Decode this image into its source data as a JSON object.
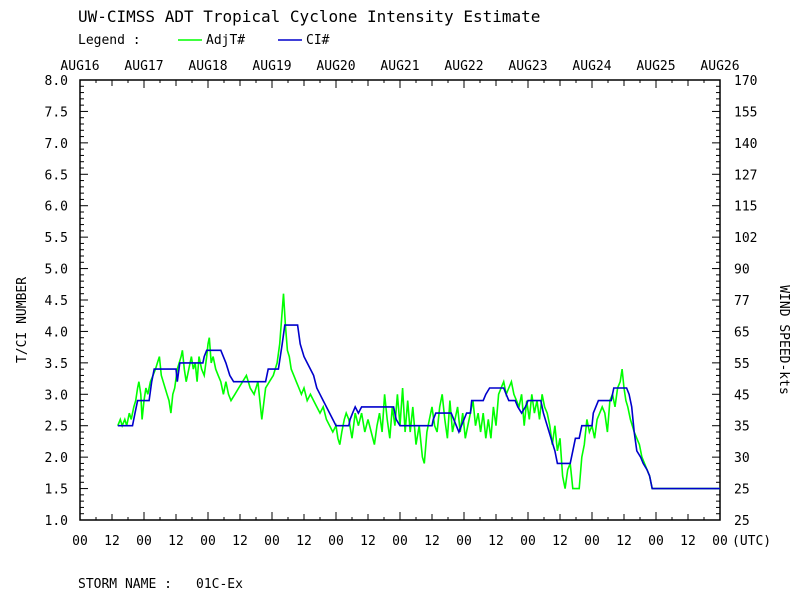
{
  "chart_data": {
    "type": "line",
    "title": "UW-CIMSS ADT Tropical Cyclone Intensity Estimate",
    "legend": {
      "heading": "Legend :",
      "placement": "top-left"
    },
    "ylabel": "T/CI NUMBER",
    "y2label": "WIND SPEED-kts",
    "xunit_label": "(UTC)",
    "footer_label": "STORM NAME :",
    "storm_name": "01C-Ex",
    "ylim": [
      1.0,
      8.0
    ],
    "y_ticks": [
      "1.0",
      "1.5",
      "2.0",
      "2.5",
      "3.0",
      "3.5",
      "4.0",
      "4.5",
      "5.0",
      "5.5",
      "6.0",
      "6.5",
      "7.0",
      "7.5",
      "8.0"
    ],
    "y2_ticks": [
      "25",
      "25",
      "30",
      "35",
      "45",
      "55",
      "65",
      "77",
      "90",
      "102",
      "115",
      "127",
      "140",
      "155",
      "170"
    ],
    "date_labels": [
      "AUG16",
      "AUG17",
      "AUG18",
      "AUG19",
      "AUG20",
      "AUG21",
      "AUG22",
      "AUG23",
      "AUG24",
      "AUG25",
      "AUG26"
    ],
    "hour_labels": [
      "00",
      "12",
      "00",
      "12",
      "00",
      "12",
      "00",
      "12",
      "00",
      "12",
      "00",
      "12",
      "00",
      "12",
      "00",
      "12",
      "00",
      "12",
      "00",
      "12",
      "00"
    ],
    "xlim_days": [
      0,
      10
    ],
    "grid": false,
    "series": [
      {
        "name": "AdjT#",
        "color": "#00ff00",
        "points": [
          [
            0.59,
            2.5
          ],
          [
            0.63,
            2.6
          ],
          [
            0.66,
            2.5
          ],
          [
            0.7,
            2.6
          ],
          [
            0.73,
            2.5
          ],
          [
            0.77,
            2.7
          ],
          [
            0.8,
            2.6
          ],
          [
            0.84,
            2.8
          ],
          [
            0.87,
            2.9
          ],
          [
            0.9,
            3.1
          ],
          [
            0.92,
            3.2
          ],
          [
            0.95,
            3.0
          ],
          [
            0.97,
            2.6
          ],
          [
            1.0,
            2.9
          ],
          [
            1.03,
            3.1
          ],
          [
            1.06,
            3.0
          ],
          [
            1.1,
            3.2
          ],
          [
            1.14,
            3.3
          ],
          [
            1.18,
            3.4
          ],
          [
            1.21,
            3.5
          ],
          [
            1.24,
            3.6
          ],
          [
            1.27,
            3.3
          ],
          [
            1.3,
            3.2
          ],
          [
            1.33,
            3.1
          ],
          [
            1.36,
            3.0
          ],
          [
            1.39,
            2.9
          ],
          [
            1.42,
            2.7
          ],
          [
            1.45,
            3.0
          ],
          [
            1.48,
            3.1
          ],
          [
            1.52,
            3.4
          ],
          [
            1.55,
            3.5
          ],
          [
            1.58,
            3.6
          ],
          [
            1.6,
            3.7
          ],
          [
            1.63,
            3.4
          ],
          [
            1.66,
            3.2
          ],
          [
            1.7,
            3.4
          ],
          [
            1.74,
            3.6
          ],
          [
            1.77,
            3.4
          ],
          [
            1.8,
            3.5
          ],
          [
            1.83,
            3.2
          ],
          [
            1.86,
            3.6
          ],
          [
            1.9,
            3.4
          ],
          [
            1.94,
            3.3
          ],
          [
            1.98,
            3.6
          ],
          [
            2.0,
            3.8
          ],
          [
            2.02,
            3.9
          ],
          [
            2.05,
            3.5
          ],
          [
            2.08,
            3.6
          ],
          [
            2.12,
            3.4
          ],
          [
            2.16,
            3.3
          ],
          [
            2.2,
            3.2
          ],
          [
            2.24,
            3.0
          ],
          [
            2.28,
            3.2
          ],
          [
            2.32,
            3.0
          ],
          [
            2.36,
            2.9
          ],
          [
            2.42,
            3.0
          ],
          [
            2.48,
            3.1
          ],
          [
            2.54,
            3.2
          ],
          [
            2.6,
            3.3
          ],
          [
            2.66,
            3.1
          ],
          [
            2.72,
            3.0
          ],
          [
            2.78,
            3.2
          ],
          [
            2.84,
            2.6
          ],
          [
            2.9,
            3.1
          ],
          [
            2.96,
            3.2
          ],
          [
            3.02,
            3.3
          ],
          [
            3.08,
            3.5
          ],
          [
            3.12,
            3.8
          ],
          [
            3.15,
            4.2
          ],
          [
            3.18,
            4.6
          ],
          [
            3.21,
            4.1
          ],
          [
            3.24,
            3.7
          ],
          [
            3.27,
            3.6
          ],
          [
            3.3,
            3.4
          ],
          [
            3.34,
            3.3
          ],
          [
            3.38,
            3.2
          ],
          [
            3.42,
            3.1
          ],
          [
            3.46,
            3.0
          ],
          [
            3.5,
            3.1
          ],
          [
            3.55,
            2.9
          ],
          [
            3.6,
            3.0
          ],
          [
            3.65,
            2.9
          ],
          [
            3.7,
            2.8
          ],
          [
            3.75,
            2.7
          ],
          [
            3.8,
            2.8
          ],
          [
            3.85,
            2.6
          ],
          [
            3.9,
            2.5
          ],
          [
            3.95,
            2.4
          ],
          [
            4.0,
            2.5
          ],
          [
            4.03,
            2.3
          ],
          [
            4.06,
            2.2
          ],
          [
            4.09,
            2.4
          ],
          [
            4.13,
            2.6
          ],
          [
            4.16,
            2.7
          ],
          [
            4.2,
            2.6
          ],
          [
            4.25,
            2.3
          ],
          [
            4.3,
            2.7
          ],
          [
            4.35,
            2.5
          ],
          [
            4.4,
            2.7
          ],
          [
            4.45,
            2.4
          ],
          [
            4.5,
            2.6
          ],
          [
            4.55,
            2.4
          ],
          [
            4.6,
            2.2
          ],
          [
            4.64,
            2.5
          ],
          [
            4.68,
            2.7
          ],
          [
            4.72,
            2.4
          ],
          [
            4.76,
            3.0
          ],
          [
            4.8,
            2.6
          ],
          [
            4.84,
            2.3
          ],
          [
            4.88,
            2.8
          ],
          [
            4.92,
            2.5
          ],
          [
            4.96,
            3.0
          ],
          [
            5.0,
            2.5
          ],
          [
            5.04,
            3.1
          ],
          [
            5.08,
            2.4
          ],
          [
            5.12,
            2.9
          ],
          [
            5.16,
            2.4
          ],
          [
            5.2,
            2.8
          ],
          [
            5.25,
            2.2
          ],
          [
            5.3,
            2.5
          ],
          [
            5.35,
            2.0
          ],
          [
            5.38,
            1.9
          ],
          [
            5.42,
            2.4
          ],
          [
            5.46,
            2.6
          ],
          [
            5.5,
            2.8
          ],
          [
            5.54,
            2.5
          ],
          [
            5.58,
            2.4
          ],
          [
            5.62,
            2.8
          ],
          [
            5.66,
            3.0
          ],
          [
            5.7,
            2.6
          ],
          [
            5.74,
            2.3
          ],
          [
            5.78,
            2.9
          ],
          [
            5.82,
            2.4
          ],
          [
            5.86,
            2.6
          ],
          [
            5.9,
            2.8
          ],
          [
            5.94,
            2.4
          ],
          [
            5.98,
            2.7
          ],
          [
            6.02,
            2.3
          ],
          [
            6.06,
            2.5
          ],
          [
            6.1,
            2.7
          ],
          [
            6.14,
            2.9
          ],
          [
            6.18,
            2.5
          ],
          [
            6.22,
            2.7
          ],
          [
            6.26,
            2.4
          ],
          [
            6.3,
            2.7
          ],
          [
            6.34,
            2.3
          ],
          [
            6.38,
            2.6
          ],
          [
            6.42,
            2.3
          ],
          [
            6.46,
            2.8
          ],
          [
            6.5,
            2.5
          ],
          [
            6.54,
            3.0
          ],
          [
            6.58,
            3.1
          ],
          [
            6.62,
            3.2
          ],
          [
            6.66,
            3.0
          ],
          [
            6.7,
            3.1
          ],
          [
            6.74,
            3.2
          ],
          [
            6.78,
            3.0
          ],
          [
            6.82,
            2.9
          ],
          [
            6.86,
            2.8
          ],
          [
            6.9,
            3.0
          ],
          [
            6.94,
            2.5
          ],
          [
            6.98,
            2.9
          ],
          [
            7.02,
            2.6
          ],
          [
            7.06,
            3.0
          ],
          [
            7.1,
            2.7
          ],
          [
            7.14,
            2.9
          ],
          [
            7.18,
            2.6
          ],
          [
            7.22,
            3.0
          ],
          [
            7.26,
            2.8
          ],
          [
            7.3,
            2.7
          ],
          [
            7.34,
            2.5
          ],
          [
            7.38,
            2.2
          ],
          [
            7.42,
            2.5
          ],
          [
            7.46,
            2.1
          ],
          [
            7.5,
            2.3
          ],
          [
            7.54,
            1.7
          ],
          [
            7.58,
            1.5
          ],
          [
            7.62,
            1.8
          ],
          [
            7.66,
            1.9
          ],
          [
            7.7,
            1.5
          ],
          [
            7.75,
            1.5
          ],
          [
            7.8,
            1.5
          ],
          [
            7.84,
            2.0
          ],
          [
            7.88,
            2.2
          ],
          [
            7.92,
            2.6
          ],
          [
            7.96,
            2.4
          ],
          [
            8.0,
            2.5
          ],
          [
            8.04,
            2.3
          ],
          [
            8.08,
            2.6
          ],
          [
            8.12,
            2.7
          ],
          [
            8.16,
            2.8
          ],
          [
            8.2,
            2.7
          ],
          [
            8.24,
            2.4
          ],
          [
            8.28,
            2.9
          ],
          [
            8.32,
            3.0
          ],
          [
            8.36,
            2.8
          ],
          [
            8.4,
            3.1
          ],
          [
            8.44,
            3.2
          ],
          [
            8.47,
            3.4
          ],
          [
            8.5,
            3.1
          ],
          [
            8.53,
            2.9
          ],
          [
            8.56,
            2.8
          ],
          [
            8.6,
            2.6
          ],
          [
            8.63,
            2.5
          ],
          [
            8.66,
            2.4
          ],
          [
            8.7,
            2.3
          ],
          [
            8.74,
            2.2
          ],
          [
            8.78,
            2.0
          ],
          [
            8.82,
            1.9
          ],
          [
            8.86,
            1.8
          ],
          [
            8.9,
            1.7
          ],
          [
            8.94,
            1.5
          ],
          [
            9.0,
            1.5
          ],
          [
            9.5,
            1.5
          ],
          [
            10.0,
            1.5
          ]
        ]
      },
      {
        "name": "CI#",
        "color": "#0000cc",
        "points": [
          [
            0.59,
            2.5
          ],
          [
            0.82,
            2.5
          ],
          [
            0.86,
            2.7
          ],
          [
            0.9,
            2.9
          ],
          [
            1.08,
            2.9
          ],
          [
            1.12,
            3.2
          ],
          [
            1.16,
            3.4
          ],
          [
            1.5,
            3.4
          ],
          [
            1.52,
            3.2
          ],
          [
            1.56,
            3.5
          ],
          [
            1.92,
            3.5
          ],
          [
            1.94,
            3.6
          ],
          [
            1.98,
            3.7
          ],
          [
            2.2,
            3.7
          ],
          [
            2.28,
            3.5
          ],
          [
            2.34,
            3.3
          ],
          [
            2.4,
            3.2
          ],
          [
            2.9,
            3.2
          ],
          [
            2.94,
            3.4
          ],
          [
            3.1,
            3.4
          ],
          [
            3.16,
            3.8
          ],
          [
            3.2,
            4.1
          ],
          [
            3.4,
            4.1
          ],
          [
            3.44,
            3.8
          ],
          [
            3.5,
            3.6
          ],
          [
            3.55,
            3.5
          ],
          [
            3.6,
            3.4
          ],
          [
            3.65,
            3.3
          ],
          [
            3.7,
            3.1
          ],
          [
            3.75,
            3.0
          ],
          [
            3.8,
            2.9
          ],
          [
            3.85,
            2.8
          ],
          [
            3.9,
            2.7
          ],
          [
            3.95,
            2.6
          ],
          [
            4.0,
            2.5
          ],
          [
            4.2,
            2.5
          ],
          [
            4.22,
            2.6
          ],
          [
            4.26,
            2.7
          ],
          [
            4.3,
            2.8
          ],
          [
            4.35,
            2.7
          ],
          [
            4.4,
            2.8
          ],
          [
            4.9,
            2.8
          ],
          [
            4.94,
            2.6
          ],
          [
            5.0,
            2.5
          ],
          [
            5.5,
            2.5
          ],
          [
            5.52,
            2.6
          ],
          [
            5.56,
            2.7
          ],
          [
            5.8,
            2.7
          ],
          [
            5.84,
            2.6
          ],
          [
            5.88,
            2.5
          ],
          [
            5.92,
            2.4
          ],
          [
            5.96,
            2.5
          ],
          [
            6.0,
            2.6
          ],
          [
            6.04,
            2.7
          ],
          [
            6.1,
            2.7
          ],
          [
            6.12,
            2.9
          ],
          [
            6.3,
            2.9
          ],
          [
            6.34,
            3.0
          ],
          [
            6.4,
            3.1
          ],
          [
            6.62,
            3.1
          ],
          [
            6.66,
            3.0
          ],
          [
            6.7,
            2.9
          ],
          [
            6.8,
            2.9
          ],
          [
            6.84,
            2.8
          ],
          [
            6.9,
            2.7
          ],
          [
            6.96,
            2.8
          ],
          [
            7.0,
            2.9
          ],
          [
            7.2,
            2.9
          ],
          [
            7.24,
            2.7
          ],
          [
            7.3,
            2.5
          ],
          [
            7.36,
            2.3
          ],
          [
            7.42,
            2.1
          ],
          [
            7.46,
            1.9
          ],
          [
            7.66,
            1.9
          ],
          [
            7.7,
            2.1
          ],
          [
            7.74,
            2.3
          ],
          [
            7.8,
            2.3
          ],
          [
            7.84,
            2.5
          ],
          [
            8.0,
            2.5
          ],
          [
            8.02,
            2.7
          ],
          [
            8.06,
            2.8
          ],
          [
            8.1,
            2.9
          ],
          [
            8.3,
            2.9
          ],
          [
            8.34,
            3.1
          ],
          [
            8.54,
            3.1
          ],
          [
            8.58,
            3.0
          ],
          [
            8.62,
            2.8
          ],
          [
            8.66,
            2.4
          ],
          [
            8.7,
            2.1
          ],
          [
            8.76,
            2.0
          ],
          [
            8.8,
            1.9
          ],
          [
            8.86,
            1.8
          ],
          [
            8.9,
            1.7
          ],
          [
            8.94,
            1.5
          ],
          [
            9.0,
            1.5
          ],
          [
            9.5,
            1.5
          ],
          [
            10.0,
            1.5
          ]
        ]
      }
    ]
  }
}
